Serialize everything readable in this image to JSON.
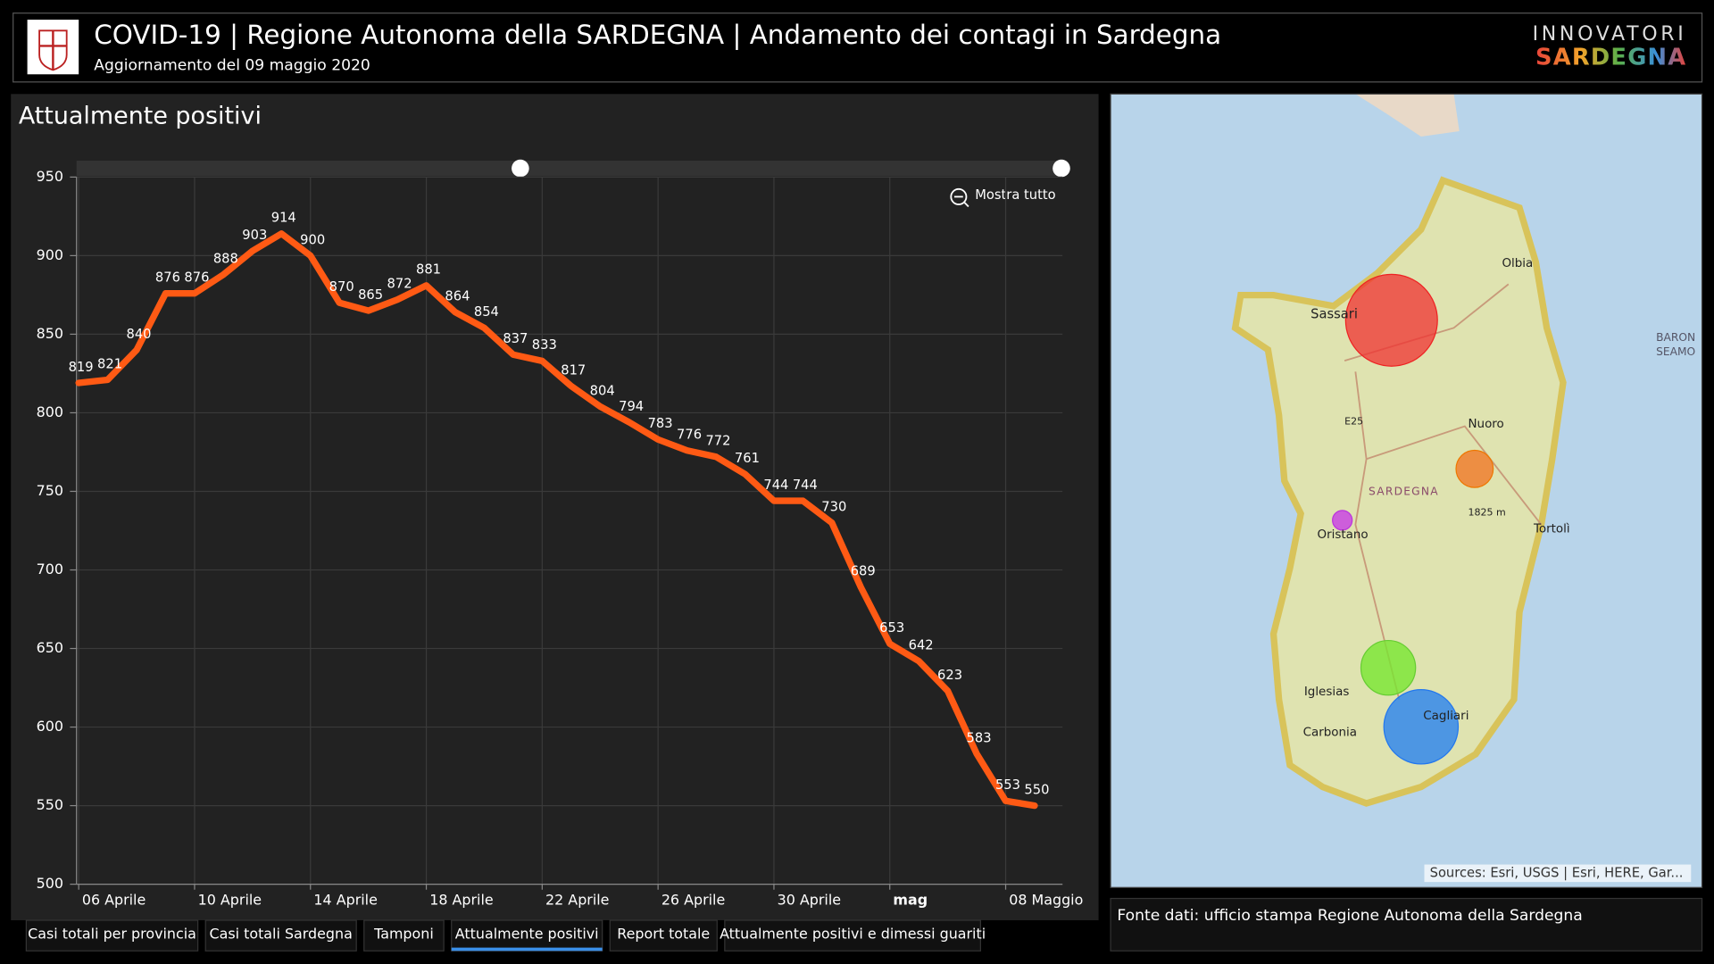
{
  "header": {
    "title": "COVID-19 | Regione Autonoma della SARDEGNA | Andamento dei contagi in Sardegna",
    "subtitle": "Aggiornamento del 09 maggio 2020",
    "brand_top": "INNOVATORI",
    "brand_bottom": "SARDEGNA"
  },
  "chart_data": {
    "type": "line",
    "title": "Attualmente positivi",
    "categories": [
      "06 Aprile",
      null,
      null,
      null,
      "10 Aprile",
      null,
      null,
      null,
      "14 Aprile",
      null,
      null,
      null,
      "18 Aprile",
      null,
      null,
      null,
      "22 Aprile",
      null,
      null,
      null,
      "26 Aprile",
      null,
      null,
      null,
      "30 Aprile",
      null,
      null,
      null,
      "mag",
      null,
      null,
      null,
      "08 Maggio",
      null
    ],
    "series": [
      {
        "name": "Attualmente positivi",
        "color": "#ff5a14",
        "values": [
          819,
          821,
          840,
          876,
          876,
          888,
          903,
          914,
          900,
          870,
          865,
          872,
          881,
          864,
          854,
          837,
          833,
          817,
          804,
          794,
          783,
          776,
          772,
          761,
          744,
          744,
          730,
          689,
          653,
          642,
          623,
          583,
          553,
          550
        ]
      }
    ],
    "ylim": [
      500,
      950
    ],
    "yticks": [
      500,
      550,
      600,
      650,
      700,
      750,
      800,
      850,
      900,
      950
    ],
    "grid": true
  },
  "zoom_button": "Mostra tutto",
  "map": {
    "labels": [
      "Olbia",
      "Sassari",
      "Nuoro",
      "SARDEGNA",
      "Oristano",
      "Tortolì",
      "Iglesias",
      "Carbonia",
      "Cagliari",
      "1825 m",
      "E25",
      "BARON",
      "SEAMO"
    ],
    "attribution": "Sources: Esri, USGS | Esri, HERE, Gar..."
  },
  "source": "Fonte dati: ufficio stampa Regione Autonoma della Sardegna",
  "tabs": [
    "Casi totali per provincia",
    "Casi totali Sardegna",
    "Tamponi",
    "Attualmente positivi",
    "Report totale",
    "Attualmente positivi e dimessi guariti"
  ]
}
